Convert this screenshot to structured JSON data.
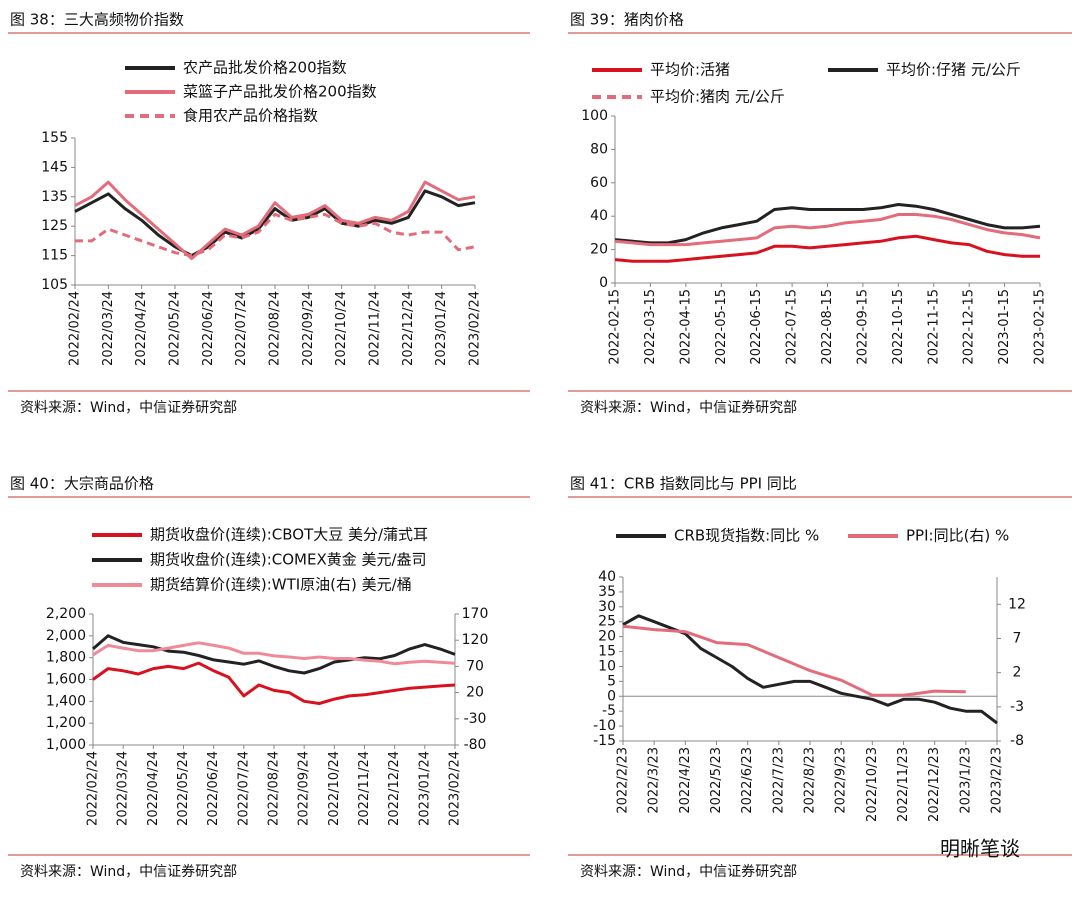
{
  "chart_data": [
    {
      "type": "line",
      "title": "图 38：三大高频物价指数",
      "source": "资料来源：Wind，中信证券研究部",
      "categories": [
        "2022/02/24",
        null,
        "2022/03/24",
        null,
        "2022/04/24",
        null,
        "2022/05/24",
        null,
        "2022/06/24",
        null,
        "2022/07/24",
        null,
        "2022/08/24",
        null,
        "2022/09/24",
        null,
        "2022/10/24",
        null,
        "2022/11/24",
        null,
        "2022/12/24",
        null,
        "2023/01/24",
        null,
        "2023/02/24"
      ],
      "ylim": [
        105,
        155
      ],
      "yticks": [
        105,
        115,
        125,
        135,
        145,
        155
      ],
      "series": [
        {
          "name": "农产品批发价格200指数",
          "color": "#222222",
          "values": [
            130,
            133,
            136,
            131,
            127,
            122,
            118,
            115,
            118,
            123,
            121,
            124,
            131,
            127,
            128,
            131,
            126,
            125,
            127,
            126,
            128,
            137,
            135,
            132,
            133
          ]
        },
        {
          "name": "菜篮子产品批发价格200指数",
          "color": "#e36c7b",
          "values": [
            132,
            135,
            140,
            134,
            129,
            124,
            119,
            114,
            119,
            124,
            122,
            125,
            133,
            128,
            129,
            132,
            127,
            126,
            128,
            127,
            130,
            140,
            137,
            134,
            135
          ]
        },
        {
          "name": "食用农产品价格指数",
          "color": "#e36c7b",
          "dashed": true,
          "values": [
            120,
            120,
            124,
            122,
            120,
            118,
            116,
            115,
            117,
            122,
            121,
            123,
            129,
            127,
            128,
            129,
            126,
            125,
            126,
            123,
            122,
            123,
            123,
            117,
            118
          ]
        }
      ]
    },
    {
      "type": "line",
      "title": "图 39：猪肉价格",
      "source": "资料来源：Wind，中信证券研究部",
      "categories": [
        "2022-02-15",
        null,
        "2022-03-15",
        null,
        "2022-04-15",
        null,
        "2022-05-15",
        null,
        "2022-06-15",
        null,
        "2022-07-15",
        null,
        "2022-08-15",
        null,
        "2022-09-15",
        null,
        "2022-10-15",
        null,
        "2022-11-15",
        null,
        "2022-12-15",
        null,
        "2023-01-15",
        null,
        "2023-02-15"
      ],
      "ylim": [
        0,
        100
      ],
      "yticks": [
        0,
        20,
        40,
        60,
        80,
        100
      ],
      "series": [
        {
          "name": "平均价:活猪",
          "color": "#d9101e",
          "values": [
            14,
            13,
            13,
            13,
            14,
            15,
            16,
            17,
            18,
            22,
            22,
            21,
            22,
            23,
            24,
            25,
            27,
            28,
            26,
            24,
            23,
            19,
            17,
            16,
            16
          ]
        },
        {
          "name": "平均价:仔猪 元/公斤",
          "color": "#222222",
          "values": [
            26,
            25,
            24,
            24,
            26,
            30,
            33,
            35,
            37,
            44,
            45,
            44,
            44,
            44,
            44,
            45,
            47,
            46,
            44,
            41,
            38,
            35,
            33,
            33,
            34
          ]
        },
        {
          "name": "平均价:猪肉 元/公斤",
          "color": "#e36c7b",
          "values": [
            25,
            24,
            23,
            23,
            23,
            24,
            25,
            26,
            27,
            33,
            34,
            33,
            34,
            36,
            37,
            38,
            41,
            41,
            40,
            38,
            35,
            32,
            30,
            29,
            27
          ]
        }
      ]
    },
    {
      "type": "line",
      "title": "图 40：大宗商品价格",
      "source": "资料来源：Wind，中信证券研究部",
      "categories": [
        "2022/02/24",
        null,
        "2022/03/24",
        null,
        "2022/04/24",
        null,
        "2022/05/24",
        null,
        "2022/06/24",
        null,
        "2022/07/24",
        null,
        "2022/08/24",
        null,
        "2022/09/24",
        null,
        "2022/10/24",
        null,
        "2022/11/24",
        null,
        "2022/12/24",
        null,
        "2023/01/24",
        null,
        "2023/02/24"
      ],
      "ylim": [
        1000,
        2200
      ],
      "yticks": [
        {
          "value": 1000,
          "label": "1,000"
        },
        {
          "value": 1200,
          "label": "1,200"
        },
        {
          "value": 1400,
          "label": "1,400"
        },
        {
          "value": 1600,
          "label": "1,600"
        },
        {
          "value": 1800,
          "label": "1,800"
        },
        {
          "value": 2000,
          "label": "2,000"
        },
        {
          "value": 2200,
          "label": "2,200"
        }
      ],
      "y2lim": [
        -80,
        170
      ],
      "y2ticks": [
        -80,
        -30,
        20,
        70,
        120,
        170
      ],
      "series": [
        {
          "name": "期货收盘价(连续):CBOT大豆 美分/蒲式耳",
          "color": "#d9101e",
          "values": [
            1600,
            1700,
            1680,
            1650,
            1700,
            1720,
            1700,
            1750,
            1680,
            1620,
            1450,
            1550,
            1500,
            1480,
            1400,
            1380,
            1420,
            1450,
            1460,
            1480,
            1500,
            1520,
            1530,
            1540,
            1550
          ]
        },
        {
          "name": "期货收盘价(连续):COMEX黄金 美元/盎司",
          "color": "#222222",
          "values": [
            1880,
            2000,
            1940,
            1920,
            1900,
            1860,
            1850,
            1820,
            1780,
            1760,
            1740,
            1770,
            1720,
            1680,
            1660,
            1700,
            1760,
            1780,
            1800,
            1790,
            1820,
            1880,
            1920,
            1880,
            1830
          ]
        },
        {
          "name": "期货结算价(连续):WTI原油(右) 美元/桶",
          "color": "#f08a98",
          "axis": "y2",
          "values": [
            92,
            110,
            105,
            100,
            100,
            105,
            110,
            115,
            110,
            105,
            95,
            95,
            90,
            88,
            85,
            88,
            85,
            85,
            82,
            80,
            75,
            78,
            80,
            78,
            76
          ]
        }
      ]
    },
    {
      "type": "line",
      "title": "图 41：CRB 指数同比与 PPI 同比",
      "source": "资料来源：Wind，中信证券研究部",
      "watermark": "明晰笔谈",
      "categories": [
        "2022/2/23",
        null,
        "2022/3/23",
        null,
        "2022/4/23",
        null,
        "2022/5/23",
        null,
        "2022/6/23",
        null,
        "2022/7/23",
        null,
        "2022/8/23",
        null,
        "2022/9/23",
        null,
        "2022/10/23",
        null,
        "2022/11/23",
        null,
        "2022/12/23",
        null,
        "2023/1/23",
        null,
        "2023/2/23"
      ],
      "ylim": [
        -15,
        40
      ],
      "yticks": [
        -15,
        -10,
        -5,
        0,
        5,
        10,
        15,
        20,
        25,
        30,
        35,
        40
      ],
      "y2lim": [
        -8,
        16
      ],
      "y2ticks": [
        -8,
        -3,
        2,
        7,
        12
      ],
      "series": [
        {
          "name": "CRB现货指数:同比 %",
          "color": "#222222",
          "values": [
            24,
            27,
            25,
            23,
            21,
            16,
            13,
            10,
            6,
            3,
            4,
            5,
            5,
            3,
            1,
            0,
            -1,
            -3,
            -1,
            -1,
            -2,
            -4,
            -5,
            -5,
            -9
          ]
        },
        {
          "name": "PPI:同比(右) %",
          "color": "#e36c7b",
          "axis": "y2",
          "values": [
            8.8,
            8.55,
            8.3,
            8.15,
            8.0,
            7.2,
            6.4,
            6.25,
            6.1,
            5.15,
            4.2,
            3.25,
            2.3,
            1.6,
            0.9,
            -0.2,
            -1.3,
            -1.3,
            -1.3,
            -1.0,
            -0.7,
            -0.75,
            -0.8,
            null,
            null
          ]
        }
      ]
    }
  ]
}
